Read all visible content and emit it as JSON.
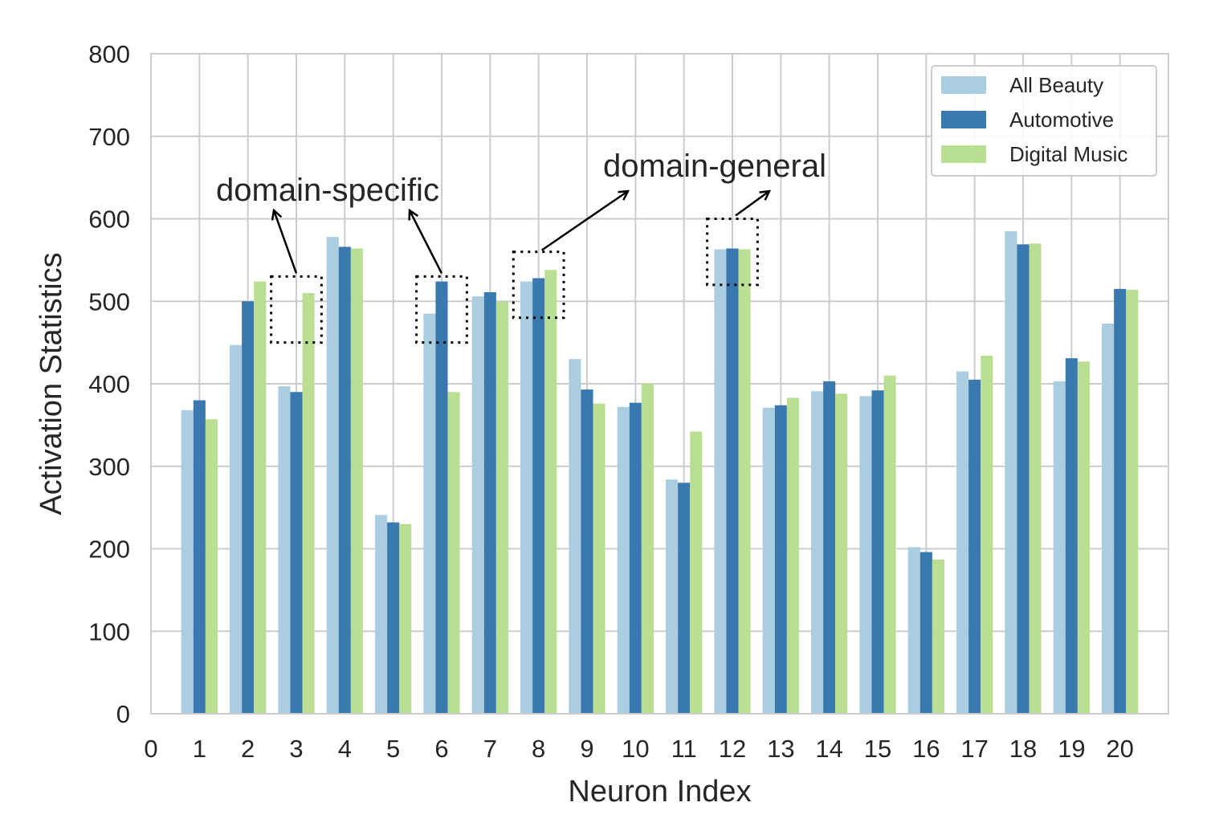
{
  "chart_data": {
    "type": "bar",
    "title": "",
    "xlabel": "Neuron Index",
    "ylabel": "Activation Statistics",
    "categories": [
      "1",
      "2",
      "3",
      "4",
      "5",
      "6",
      "7",
      "8",
      "9",
      "10",
      "11",
      "12",
      "13",
      "14",
      "15",
      "16",
      "17",
      "18",
      "19",
      "20"
    ],
    "x_ticks": [
      "0",
      "1",
      "2",
      "3",
      "4",
      "5",
      "6",
      "7",
      "8",
      "9",
      "10",
      "11",
      "12",
      "13",
      "14",
      "15",
      "16",
      "17",
      "18",
      "19",
      "20"
    ],
    "xlim": [
      0,
      21
    ],
    "ylim": [
      0,
      800
    ],
    "y_ticks": [
      "0",
      "100",
      "200",
      "300",
      "400",
      "500",
      "600",
      "700",
      "800"
    ],
    "grid": true,
    "legend_position": "top-right",
    "series": [
      {
        "name": "All Beauty",
        "color": "#abcde0",
        "values": [
          368,
          447,
          397,
          578,
          241,
          485,
          506,
          524,
          430,
          372,
          284,
          563,
          371,
          391,
          385,
          202,
          415,
          585,
          403,
          473
        ]
      },
      {
        "name": "Automotive",
        "color": "#3a78b0",
        "values": [
          380,
          500,
          390,
          566,
          232,
          524,
          511,
          528,
          393,
          377,
          280,
          564,
          374,
          403,
          392,
          196,
          405,
          569,
          431,
          515
        ]
      },
      {
        "name": "Digital Music",
        "color": "#badf93",
        "values": [
          357,
          524,
          510,
          564,
          230,
          390,
          500,
          538,
          376,
          400,
          342,
          563,
          383,
          388,
          410,
          187,
          434,
          570,
          427,
          514
        ]
      }
    ],
    "annotations": [
      {
        "text": "domain-specific",
        "targets": [
          {
            "neuron": 3,
            "y_range": [
              450,
              530
            ]
          },
          {
            "neuron": 6,
            "y_range": [
              450,
              530
            ]
          }
        ]
      },
      {
        "text": "domain-general",
        "targets": [
          {
            "neuron": 8,
            "y_range": [
              480,
              560
            ]
          },
          {
            "neuron": 12,
            "y_range": [
              520,
              600
            ]
          }
        ]
      }
    ]
  }
}
